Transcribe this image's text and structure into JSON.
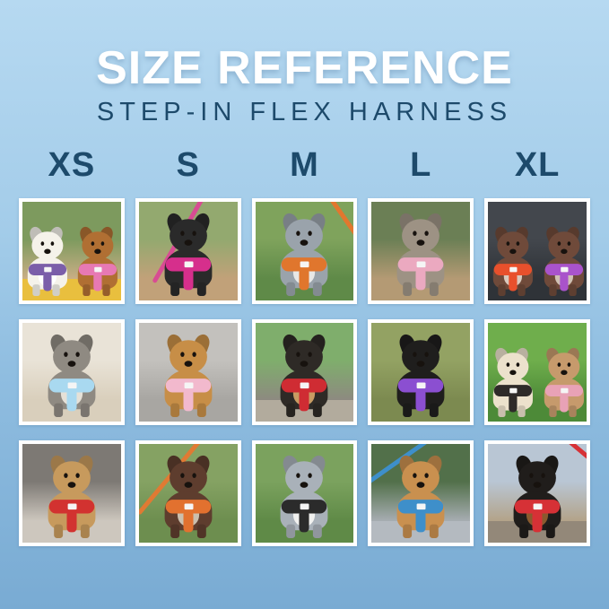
{
  "poster": {
    "title": "SIZE REFERENCE",
    "subtitle": "STEP-IN FLEX HARNESS"
  },
  "colors": {
    "background_top": "#b6d9f1",
    "background_bottom": "#79abd3",
    "title_text": "#ffffff",
    "accent_text": "#1d4a6b",
    "photo_frame": "#ffffff"
  },
  "sizes": [
    "XS",
    "S",
    "M",
    "L",
    "XL"
  ],
  "photos": [
    {
      "size": "XS",
      "description": "White bichon in purple harness and apricot poodle in pink harness on a colorful picnic blanket",
      "scene_top": "#7d9a5e",
      "scene_bottom": "#c9ae85",
      "accent": "#e9bf3e",
      "leash": null,
      "leash_angle": 0,
      "dogs": [
        {
          "coat": "#f5f2ea",
          "chest": "#ffffff",
          "harness": "#7b5ea9"
        },
        {
          "coat": "#b06f33",
          "chest": null,
          "harness": "#e779b4"
        }
      ]
    },
    {
      "size": "S",
      "description": "Black mixed-breed dog in magenta harness standing on a rock with pink leash",
      "scene_top": "#93a96f",
      "scene_bottom": "#c1a179",
      "accent": null,
      "leash": "#d84c93",
      "leash_angle": 30,
      "dogs": [
        {
          "coat": "#2a2a2a",
          "chest": null,
          "harness": "#d62f8c"
        }
      ]
    },
    {
      "size": "M",
      "description": "Blue merle puppy in orange harness with orange leash on green grass",
      "scene_top": "#7fa35c",
      "scene_bottom": "#5f8a48",
      "accent": null,
      "leash": "#e2772e",
      "leash_angle": -35,
      "dogs": [
        {
          "coat": "#9aa3ab",
          "chest": "#e8e8e6",
          "harness": "#e0762d"
        }
      ]
    },
    {
      "size": "L",
      "description": "Brindle sighthound in light pink harness sitting in a shaded park",
      "scene_top": "#6b7f55",
      "scene_bottom": "#b49a74",
      "accent": null,
      "leash": null,
      "leash_angle": 0,
      "dogs": [
        {
          "coat": "#9d9284",
          "chest": null,
          "harness": "#eba9c0"
        }
      ]
    },
    {
      "size": "XL",
      "description": "Two German shorthaired pointers in red-orange and purple harnesses inside a car",
      "scene_top": "#43474d",
      "scene_bottom": "#2f3338",
      "accent": null,
      "leash": null,
      "leash_angle": 0,
      "dogs": [
        {
          "coat": "#6f4a3a",
          "chest": "#d9c9bd",
          "harness": "#e8502c"
        },
        {
          "coat": "#6f4a3a",
          "chest": "#cfc0b4",
          "harness": "#a953cb"
        }
      ]
    },
    {
      "size": "XS",
      "description": "Grey and white shih tzu mix in light blue harness lying on a cream bed",
      "scene_top": "#e9e3d7",
      "scene_bottom": "#d9cfbc",
      "accent": null,
      "leash": null,
      "leash_angle": 0,
      "dogs": [
        {
          "coat": "#8f8a82",
          "chest": "#e6e1d7",
          "harness": "#a9d9f0"
        }
      ]
    },
    {
      "size": "S",
      "description": "Golden retriever puppy in light pink harness sitting on grey pavement",
      "scene_top": "#c3c1bd",
      "scene_bottom": "#a8a6a2",
      "accent": null,
      "leash": null,
      "leash_angle": 0,
      "dogs": [
        {
          "coat": "#c78e47",
          "chest": null,
          "harness": "#f2b9cd"
        }
      ]
    },
    {
      "size": "M",
      "description": "Black and tan dog in red harness in front of a park bench",
      "scene_top": "#7fae6c",
      "scene_bottom": "#8d8a80",
      "accent": "#b2ab9d",
      "leash": null,
      "leash_angle": 0,
      "dogs": [
        {
          "coat": "#2e2a26",
          "chest": "#c99c63",
          "harness": "#cf2c33"
        }
      ]
    },
    {
      "size": "L",
      "description": "Black puppy in purple harness on autumn grass with fallen leaves",
      "scene_top": "#93a263",
      "scene_bottom": "#7c8a50",
      "accent": null,
      "leash": null,
      "leash_angle": 0,
      "dogs": [
        {
          "coat": "#1f1e1d",
          "chest": null,
          "harness": "#8b4fd1"
        }
      ]
    },
    {
      "size": "XL",
      "description": "Cream doodle in black harness and fawn French bulldog in pink harness on bright grass",
      "scene_top": "#6fae4c",
      "scene_bottom": "#4d8a38",
      "accent": null,
      "leash": null,
      "leash_angle": 0,
      "dogs": [
        {
          "coat": "#ece1cc",
          "chest": null,
          "harness": "#2e2a29"
        },
        {
          "coat": "#c69a6c",
          "chest": null,
          "harness": "#e8a2b6"
        }
      ]
    },
    {
      "size": "XS",
      "description": "Tan yorkie mix in red harness sitting on a shaggy grey rug",
      "scene_top": "#7d7974",
      "scene_bottom": "#cdc7be",
      "accent": null,
      "leash": null,
      "leash_angle": 0,
      "dogs": [
        {
          "coat": "#c79a5d",
          "chest": null,
          "harness": "#d23230"
        }
      ]
    },
    {
      "size": "S",
      "description": "Liver pointer puppy in orange harness lying in grass with orange leash",
      "scene_top": "#85a263",
      "scene_bottom": "#6d8e4f",
      "accent": null,
      "leash": "#e07a33",
      "leash_angle": 40,
      "dogs": [
        {
          "coat": "#5e3d2e",
          "chest": "#cbbfae",
          "harness": "#e2712f"
        }
      ]
    },
    {
      "size": "M",
      "description": "Merle border collie with white chest in black harness outdoors",
      "scene_top": "#7ba25e",
      "scene_bottom": "#5f8a47",
      "accent": null,
      "leash": null,
      "leash_angle": 0,
      "dogs": [
        {
          "coat": "#a9b1b9",
          "chest": "#f1f1ef",
          "harness": "#2b2b2b"
        }
      ]
    },
    {
      "size": "L",
      "description": "Apricot doodle in blue harness with blue leash sitting on a stone ledge",
      "scene_top": "#52704a",
      "scene_bottom": "#a7adb2",
      "accent": "#b4bac0",
      "leash": "#3e8fca",
      "leash_angle": 55,
      "dogs": [
        {
          "coat": "#c9904f",
          "chest": null,
          "harness": "#3e8fca"
        }
      ]
    },
    {
      "size": "XL",
      "description": "Black and tan puppy in red harness with red leash on a rock with mountain views",
      "scene_top": "#b9c6d4",
      "scene_bottom": "#b3a389",
      "accent": "#938879",
      "leash": "#d63136",
      "leash_angle": -50,
      "dogs": [
        {
          "coat": "#201d1b",
          "chest": "#8a5a2e",
          "harness": "#d63136"
        }
      ]
    }
  ]
}
